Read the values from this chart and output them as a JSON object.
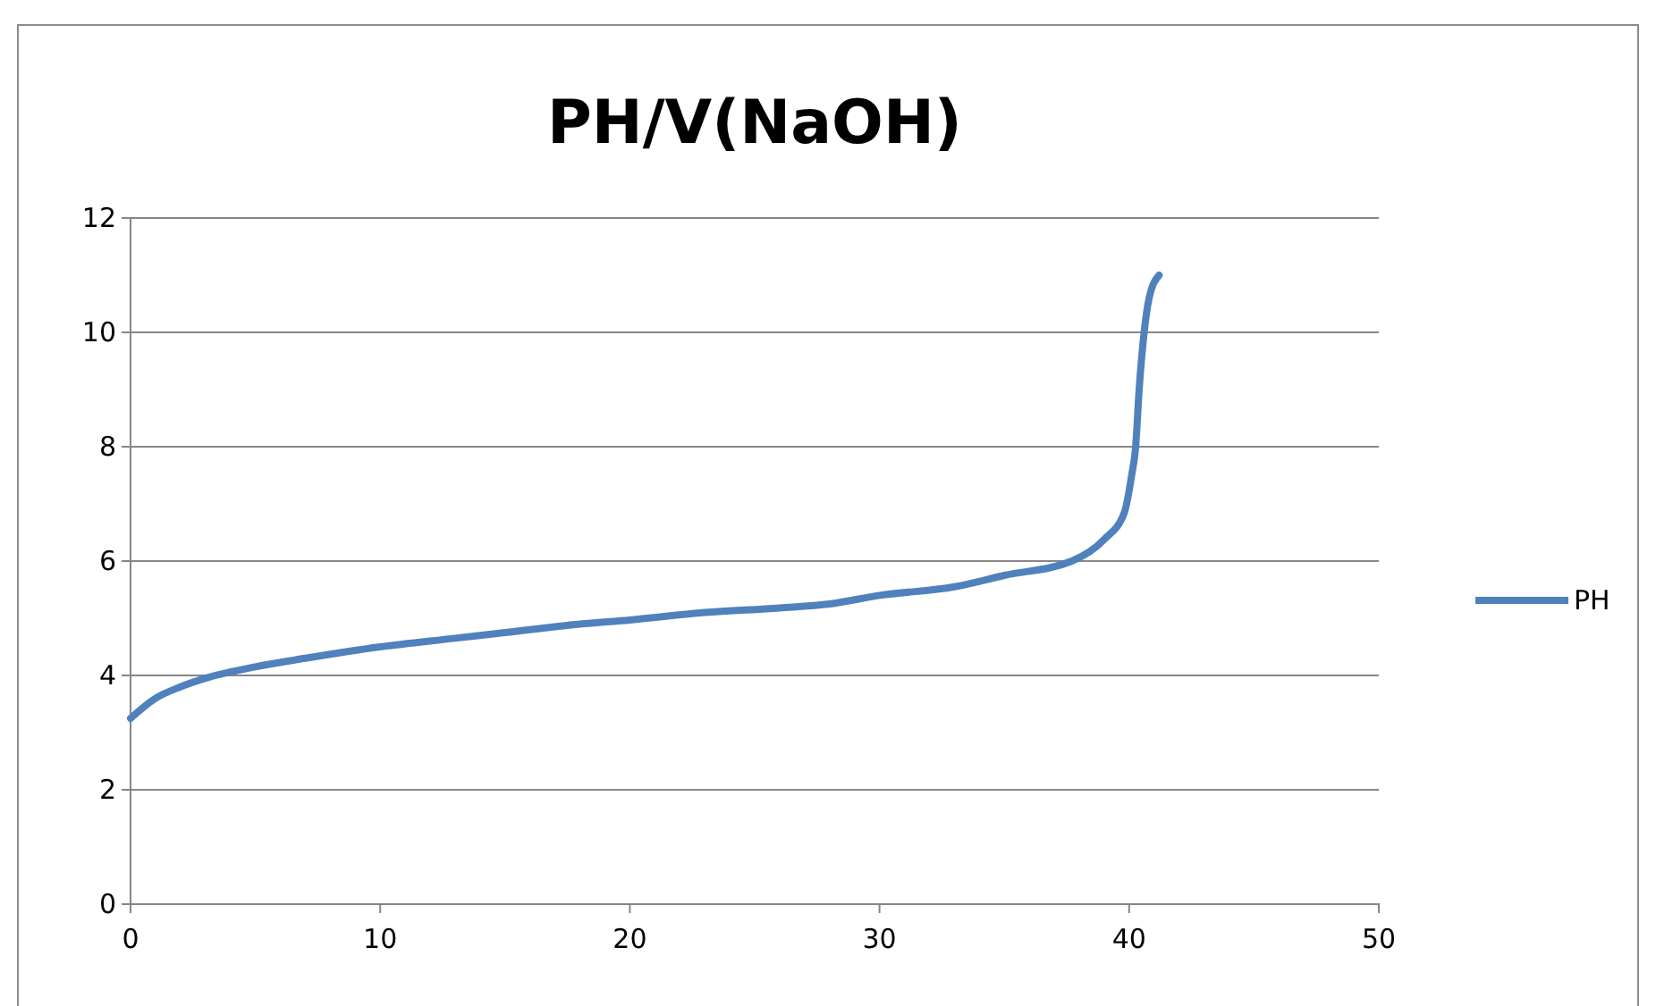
{
  "chart_data": {
    "type": "line",
    "title": "PH/V(NaOH)",
    "x": [
      0,
      1,
      2,
      3,
      5,
      7,
      10,
      13,
      15,
      18,
      20,
      23,
      26,
      28,
      30,
      33,
      35,
      37.7,
      39,
      39.8,
      40.1,
      40.26,
      40.4,
      40.6,
      40.8,
      41.2
    ],
    "series": [
      {
        "name": "PH",
        "color": "#4f81bd",
        "values": [
          3.25,
          3.6,
          3.8,
          3.95,
          4.15,
          4.3,
          4.5,
          4.65,
          4.75,
          4.9,
          4.97,
          5.1,
          5.18,
          5.25,
          5.4,
          5.55,
          5.75,
          6.0,
          6.38,
          6.84,
          7.5,
          8,
          9,
          10,
          10.6,
          11.0
        ]
      }
    ],
    "xlim": [
      0,
      50
    ],
    "xticks": [
      0,
      10,
      20,
      30,
      40,
      50
    ],
    "ylim": [
      0,
      12
    ],
    "yticks": [
      0,
      2,
      4,
      6,
      8,
      10,
      12
    ],
    "grid": "y",
    "legend": "right",
    "marker": "none",
    "line_style": "solid"
  }
}
